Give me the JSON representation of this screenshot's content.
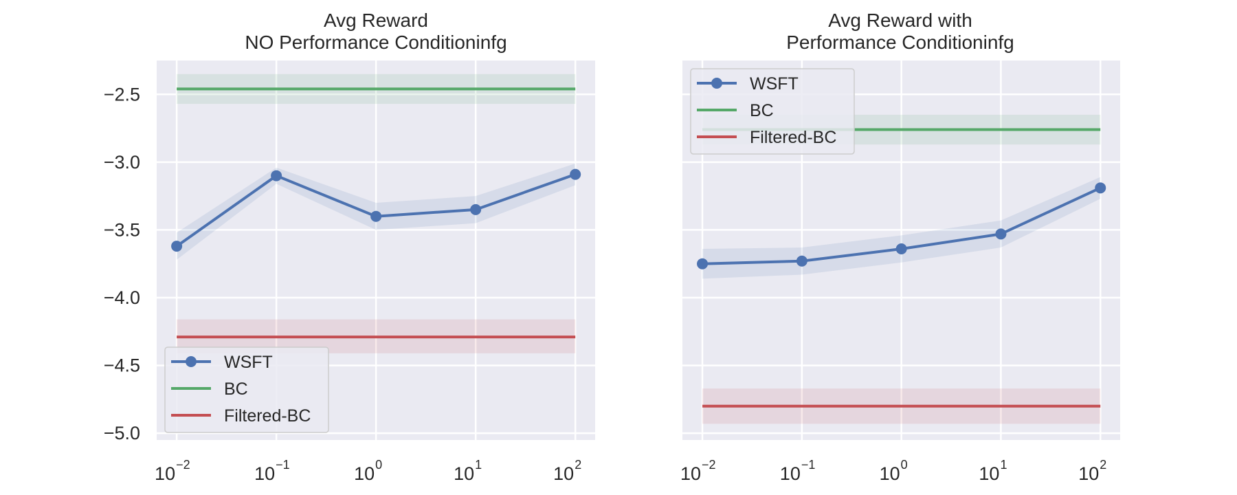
{
  "colors": {
    "background": "#eaeaf2",
    "grid": "#ffffff",
    "wsft": "#4c72b0",
    "bc": "#55a868",
    "filtered_bc": "#c44e52"
  },
  "chart_data": [
    {
      "type": "line",
      "title_lines": [
        "Avg Reward",
        "NO Performance Conditioninfg"
      ],
      "xlabel": "",
      "ylabel": "",
      "xscale": "log",
      "xlim": [
        0.0063,
        158
      ],
      "ylim": [
        -5.05,
        -2.25
      ],
      "x": [
        0.01,
        0.1,
        1,
        10,
        100
      ],
      "x_tick_labels": [
        {
          "base": "10",
          "exp": "−2"
        },
        {
          "base": "10",
          "exp": "−1"
        },
        {
          "base": "10",
          "exp": "0"
        },
        {
          "base": "10",
          "exp": "1"
        },
        {
          "base": "10",
          "exp": "2"
        }
      ],
      "y_ticks": [
        -2.5,
        -3.0,
        -3.5,
        -4.0,
        -4.5,
        -5.0
      ],
      "y_tick_labels": [
        "−2.5",
        "−3.0",
        "−3.5",
        "−4.0",
        "−4.5",
        "−5.0"
      ],
      "grid": true,
      "legend_position": "lower-left",
      "series": [
        {
          "name": "WSFT",
          "key": "wsft",
          "marker": true,
          "values": [
            -3.62,
            -3.1,
            -3.4,
            -3.35,
            -3.09
          ],
          "lower": [
            -3.72,
            -3.16,
            -3.5,
            -3.45,
            -3.17
          ],
          "upper": [
            -3.52,
            -3.04,
            -3.3,
            -3.25,
            -3.01
          ]
        },
        {
          "name": "BC",
          "key": "bc",
          "marker": false,
          "values": [
            -2.46,
            -2.46,
            -2.46,
            -2.46,
            -2.46
          ],
          "lower": [
            -2.57,
            -2.57,
            -2.57,
            -2.57,
            -2.57
          ],
          "upper": [
            -2.35,
            -2.35,
            -2.35,
            -2.35,
            -2.35
          ]
        },
        {
          "name": "Filtered-BC",
          "key": "filtered_bc",
          "marker": false,
          "values": [
            -4.29,
            -4.29,
            -4.29,
            -4.29,
            -4.29
          ],
          "lower": [
            -4.41,
            -4.41,
            -4.41,
            -4.41,
            -4.41
          ],
          "upper": [
            -4.16,
            -4.16,
            -4.16,
            -4.16,
            -4.16
          ]
        }
      ]
    },
    {
      "type": "line",
      "title_lines": [
        "Avg Reward with",
        "Performance Conditioninfg"
      ],
      "xlabel": "",
      "ylabel": "",
      "xscale": "log",
      "xlim": [
        0.0063,
        158
      ],
      "ylim": [
        -5.05,
        -2.25
      ],
      "x": [
        0.01,
        0.1,
        1,
        10,
        100
      ],
      "x_tick_labels": [
        {
          "base": "10",
          "exp": "−2"
        },
        {
          "base": "10",
          "exp": "−1"
        },
        {
          "base": "10",
          "exp": "0"
        },
        {
          "base": "10",
          "exp": "1"
        },
        {
          "base": "10",
          "exp": "2"
        }
      ],
      "y_ticks": [
        -2.5,
        -3.0,
        -3.5,
        -4.0,
        -4.5,
        -5.0
      ],
      "y_tick_labels": [],
      "grid": true,
      "legend_position": "upper-left",
      "series": [
        {
          "name": "WSFT",
          "key": "wsft",
          "marker": true,
          "values": [
            -3.75,
            -3.73,
            -3.64,
            -3.53,
            -3.19
          ],
          "lower": [
            -3.86,
            -3.83,
            -3.74,
            -3.63,
            -3.27
          ],
          "upper": [
            -3.64,
            -3.63,
            -3.54,
            -3.43,
            -3.11
          ]
        },
        {
          "name": "BC",
          "key": "bc",
          "marker": false,
          "values": [
            -2.76,
            -2.76,
            -2.76,
            -2.76,
            -2.76
          ],
          "lower": [
            -2.87,
            -2.87,
            -2.87,
            -2.87,
            -2.87
          ],
          "upper": [
            -2.65,
            -2.65,
            -2.65,
            -2.65,
            -2.65
          ]
        },
        {
          "name": "Filtered-BC",
          "key": "filtered_bc",
          "marker": false,
          "values": [
            -4.8,
            -4.8,
            -4.8,
            -4.8,
            -4.8
          ],
          "lower": [
            -4.93,
            -4.93,
            -4.93,
            -4.93,
            -4.93
          ],
          "upper": [
            -4.67,
            -4.67,
            -4.67,
            -4.67,
            -4.67
          ]
        }
      ]
    }
  ]
}
